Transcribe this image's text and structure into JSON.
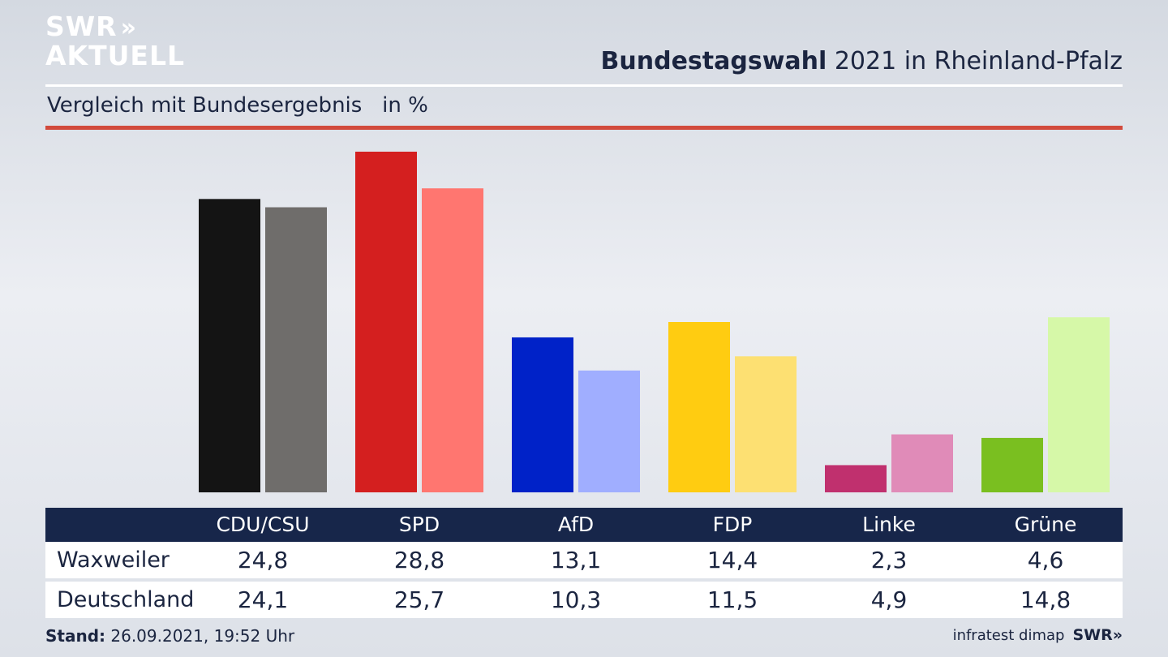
{
  "header": {
    "logo_line1": "SWR",
    "logo_chevrons": "»",
    "logo_line2": "AKTUELL",
    "title_bold": "Bundestagswahl",
    "title_rest": " 2021 in Rheinland-Pfalz",
    "subtitle": "Vergleich mit Bundesergebnis   in %"
  },
  "chart_data": {
    "type": "bar",
    "title": "Bundestagswahl 2021 in Rheinland-Pfalz",
    "subtitle": "Vergleich mit Bundesergebnis",
    "unit": "in %",
    "categories": [
      "CDU/CSU",
      "SPD",
      "AfD",
      "FDP",
      "Linke",
      "Grüne"
    ],
    "series": [
      {
        "name": "Waxweiler",
        "values": [
          "24,8",
          "28,8",
          "13,1",
          "14,4",
          "2,3",
          "4,6"
        ],
        "numeric": [
          24.8,
          28.8,
          13.1,
          14.4,
          2.3,
          4.6
        ]
      },
      {
        "name": "Deutschland",
        "values": [
          "24,1",
          "25,7",
          "10,3",
          "11,5",
          "4,9",
          "14,8"
        ],
        "numeric": [
          24.1,
          25.7,
          10.3,
          11.5,
          4.9,
          14.8
        ]
      }
    ],
    "colors": [
      [
        "#141414",
        "#6f6d6b"
      ],
      [
        "#d41f1f",
        "#ff7670"
      ],
      [
        "#0022c8",
        "#a0aeff"
      ],
      [
        "#ffcc11",
        "#fde072"
      ],
      [
        "#c0306e",
        "#e08bb8"
      ],
      [
        "#7abf20",
        "#d6f8a8"
      ]
    ],
    "ylim": [
      0,
      28.8
    ],
    "grid": false
  },
  "footer": {
    "stand_label": "Stand:",
    "stand_value": " 26.09.2021, 19:52 Uhr",
    "source": "infratest dimap",
    "brand": "SWR»"
  }
}
